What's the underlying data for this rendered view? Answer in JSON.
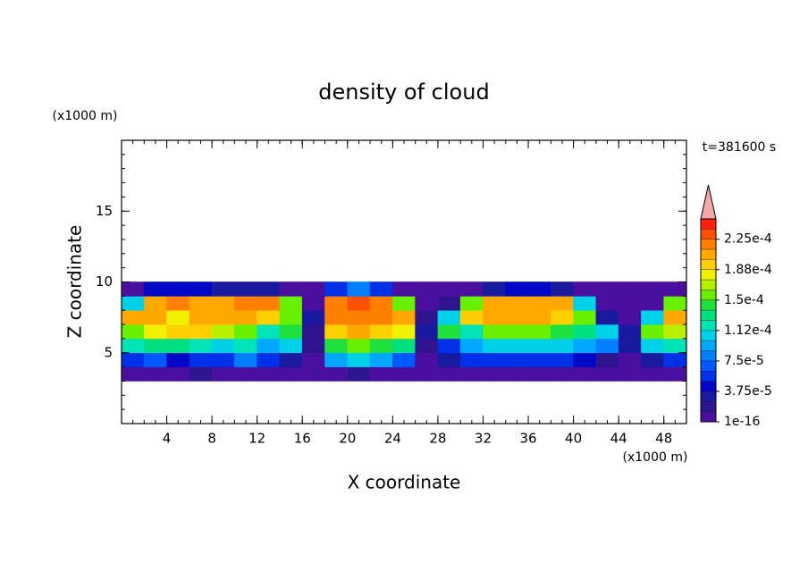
{
  "chart_data": {
    "type": "contour",
    "title": "density of cloud",
    "xlabel": "X coordinate",
    "ylabel": "Z coordinate",
    "x_unit": "(x1000 m)",
    "y_unit": "(x1000 m)",
    "annotation": "t=381600 s",
    "xlim": [
      0,
      50
    ],
    "ylim": [
      0,
      20
    ],
    "xticks": [
      4,
      8,
      12,
      16,
      20,
      24,
      28,
      32,
      36,
      40,
      44,
      48
    ],
    "yticks": [
      5,
      10,
      15
    ],
    "x_minor_step": 1,
    "y_minor_step": 1,
    "field": {
      "x": [
        1,
        3,
        5,
        7,
        9,
        11,
        13,
        15,
        17,
        19,
        21,
        23,
        25,
        27,
        29,
        31,
        33,
        35,
        37,
        39,
        41,
        43,
        45,
        47,
        49
      ],
      "z": [
        3.5,
        4.5,
        5.5,
        6.5,
        7.5,
        8.5,
        9.5
      ],
      "values": [
        [
          5e-06,
          5e-06,
          5e-06,
          2e-05,
          5e-06,
          5e-06,
          5e-06,
          5e-06,
          5e-06,
          5e-06,
          2e-05,
          5e-06,
          5e-06,
          5e-06,
          5e-06,
          5e-06,
          5e-06,
          5e-06,
          5e-06,
          5e-06,
          5e-06,
          5e-06,
          5e-06,
          5e-06,
          5e-06
        ],
        [
          6e-05,
          7e-05,
          4e-05,
          5e-05,
          6e-05,
          8e-05,
          6e-05,
          3e-05,
          1e-05,
          9e-05,
          0.0001,
          9e-05,
          7e-05,
          1e-05,
          3e-05,
          5e-05,
          6e-05,
          5e-05,
          6e-05,
          5e-05,
          4e-05,
          2e-05,
          1e-05,
          3e-05,
          5e-05
        ],
        [
          0.00012,
          0.00013,
          0.00013,
          0.00012,
          0.00011,
          0.00012,
          9e-05,
          0.0001,
          2e-05,
          0.00014,
          0.00015,
          0.00014,
          0.00013,
          2e-05,
          6e-05,
          9e-05,
          0.00011,
          0.00011,
          0.0001,
          0.0001,
          9e-05,
          8e-05,
          3e-05,
          0.00011,
          0.00012
        ],
        [
          0.00016,
          0.00018,
          0.00019,
          0.00019,
          0.00017,
          0.00015,
          0.00012,
          0.00014,
          2e-05,
          0.00019,
          0.0002,
          0.00019,
          0.00018,
          3e-05,
          0.00014,
          0.00012,
          0.00015,
          0.00016,
          0.00015,
          0.00014,
          0.00013,
          0.0001,
          3e-05,
          0.00015,
          0.00017
        ],
        [
          0.0002,
          0.00021,
          0.00018,
          0.0002,
          0.00021,
          0.0002,
          0.00019,
          0.00016,
          3e-05,
          0.00022,
          0.00022,
          0.00022,
          0.0002,
          2e-05,
          0.0001,
          0.00019,
          0.0002,
          0.0002,
          0.0002,
          0.00019,
          0.00015,
          3e-05,
          5e-06,
          0.0001,
          0.0002
        ],
        [
          0.0001,
          0.0002,
          0.00022,
          0.00021,
          0.00021,
          0.00022,
          0.00022,
          0.00015,
          5e-06,
          0.00022,
          0.00023,
          0.00022,
          0.00015,
          5e-06,
          2e-05,
          0.00015,
          0.0002,
          0.00021,
          0.00021,
          0.0002,
          0.0001,
          5e-06,
          5e-06,
          5e-06,
          0.00015
        ],
        [
          3e-06,
          4e-05,
          4e-05,
          4e-05,
          3e-05,
          3e-05,
          3e-05,
          5e-06,
          5e-06,
          6e-05,
          8e-05,
          6e-05,
          5e-06,
          5e-06,
          5e-06,
          5e-06,
          3e-05,
          4e-05,
          4e-05,
          3e-05,
          1e-05,
          5e-06,
          5e-06,
          5e-06,
          5e-06
        ]
      ]
    },
    "colorbar": {
      "levels": [
        1e-16,
        1.25e-05,
        2.5e-05,
        3.75e-05,
        5e-05,
        6.25e-05,
        7.5e-05,
        8.75e-05,
        0.0001,
        0.0001125,
        0.000125,
        0.0001375,
        0.00015,
        0.0001625,
        0.000175,
        0.0001875,
        0.0002,
        0.0002125,
        0.000225,
        0.0002375,
        0.00025
      ],
      "colors": [
        "#4a0f9e",
        "#2e148f",
        "#1a1aa0",
        "#0008c8",
        "#0030e8",
        "#0058ff",
        "#0080ff",
        "#00a8ff",
        "#00d0e8",
        "#00e4b8",
        "#00e080",
        "#20e040",
        "#68f000",
        "#b8f000",
        "#f0f000",
        "#ffd000",
        "#ffa800",
        "#ff8000",
        "#ff5000",
        "#ff2010"
      ],
      "extend_color": "#f4a8a8",
      "ticks": [
        1e-16,
        {
          "value": 3.75e-05,
          "label": "3.75e-5"
        },
        {
          "value": 7.5e-05,
          "label": "7.5e-5"
        },
        {
          "value": 0.0001125,
          "label": "1.12e-4"
        },
        {
          "value": 0.00015,
          "label": "1.5e-4"
        },
        {
          "value": 0.0001875,
          "label": "1.88e-4"
        },
        {
          "value": 0.000225,
          "label": "2.25e-4"
        }
      ]
    }
  }
}
